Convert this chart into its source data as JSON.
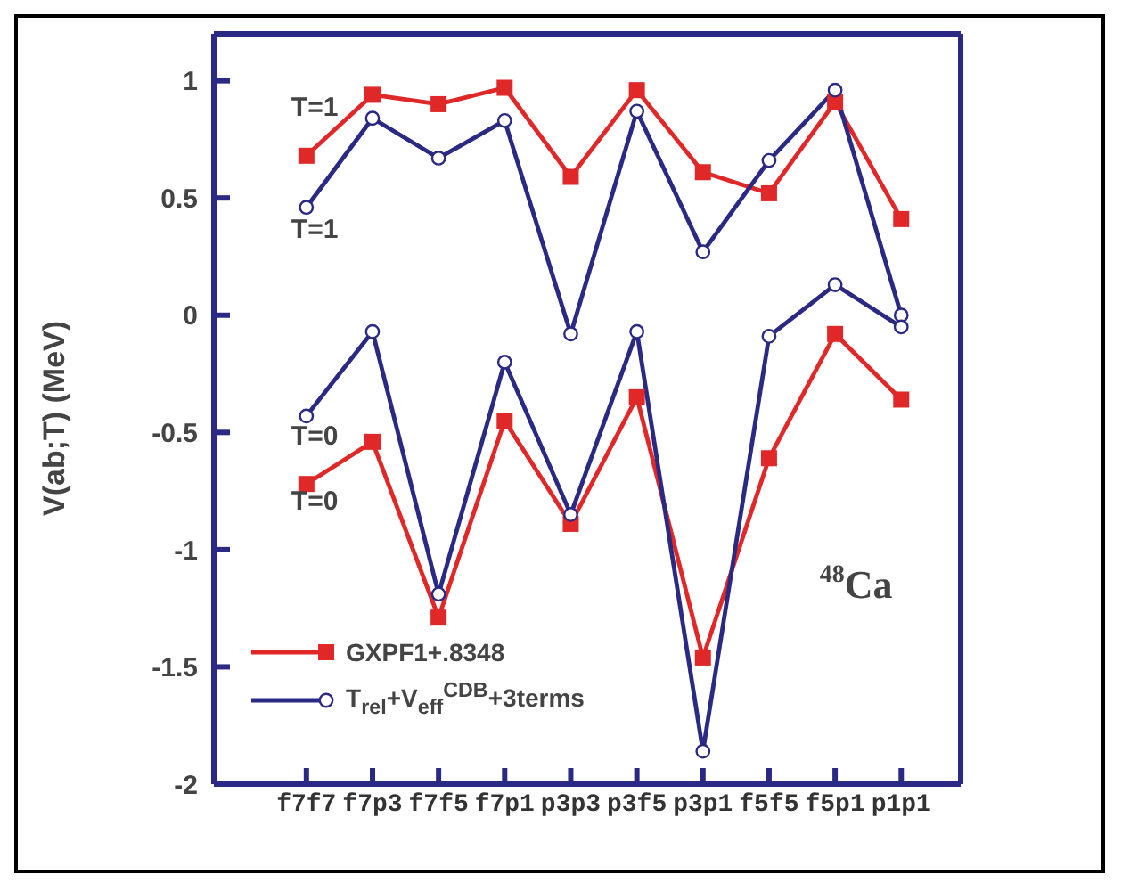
{
  "chart_data": {
    "type": "line",
    "ylabel": "V(ab;T) (MeV)",
    "categories": [
      "f7f7",
      "f7p3",
      "f7f5",
      "f7p1",
      "p3p3",
      "p3f5",
      "p3p1",
      "f5f5",
      "f5p1",
      "p1p1"
    ],
    "series": [
      {
        "name": "GXPF1+.8348",
        "color": "#e02828",
        "marker": "square",
        "values": [
          0.68,
          0.94,
          0.9,
          0.97,
          0.59,
          0.96,
          0.61,
          0.52,
          0.91,
          0.41
        ]
      },
      {
        "name": "T$_{rel}$+V$_{eff}$$^{CDB}$+3terms",
        "color": "#2a2a85",
        "marker": "circle",
        "values": [
          0.46,
          0.84,
          0.67,
          0.83,
          -0.08,
          0.87,
          0.27,
          0.66,
          0.96,
          0.0
        ]
      },
      {
        "color": "#e02828",
        "marker": "square",
        "values": [
          -0.72,
          -0.54,
          -1.29,
          -0.45,
          -0.89,
          -0.35,
          -1.46,
          -0.61,
          -0.08,
          -0.36
        ]
      },
      {
        "color": "#2a2a85",
        "marker": "circle",
        "values": [
          -0.43,
          -0.07,
          -1.19,
          -0.2,
          -0.85,
          -0.07,
          -1.86,
          -0.09,
          0.13,
          -0.05
        ]
      }
    ],
    "ylim": [
      -2,
      1.2
    ],
    "yticks": [
      -2,
      -1.5,
      -1,
      -0.5,
      0,
      0.5,
      1
    ],
    "grid": false,
    "legend": "bottom left",
    "line_style": "solid",
    "annotations": [
      "T=1",
      "T=1",
      "T=0",
      "T=0",
      "$^{48}$Ca"
    ]
  }
}
